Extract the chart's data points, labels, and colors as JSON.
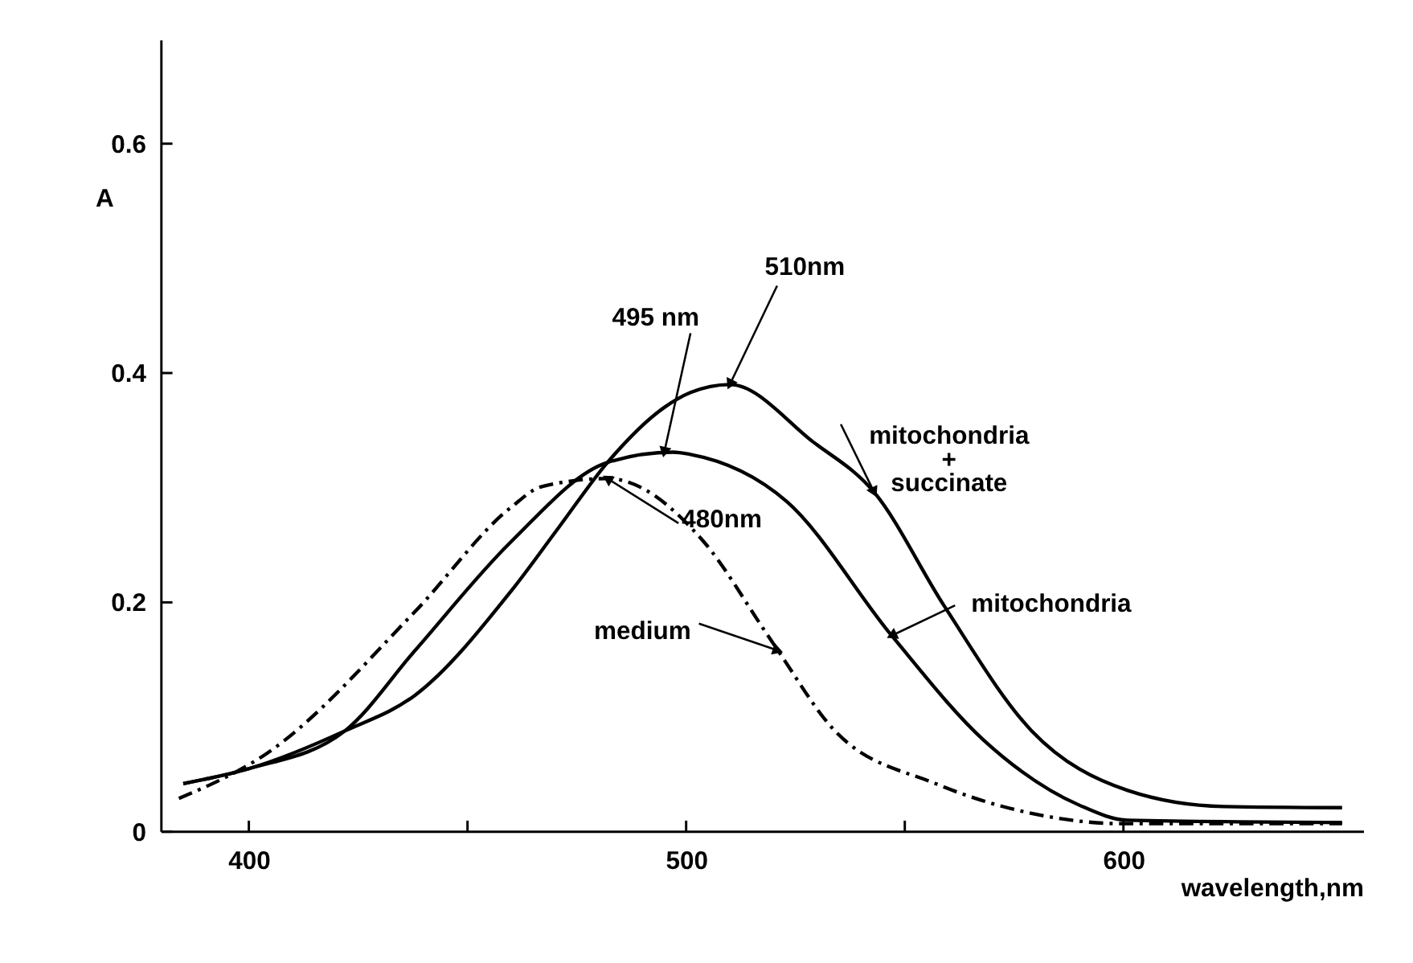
{
  "chart_data": {
    "type": "line",
    "xlabel": "wavelength,nm",
    "ylabel": "A",
    "xlim": [
      380,
      655
    ],
    "ylim": [
      0,
      0.69
    ],
    "xticks": [
      400,
      {
        "value": 450,
        "label": null
      },
      500,
      {
        "value": 550,
        "label": null
      },
      600
    ],
    "yticks": [
      0,
      0.2,
      0.4,
      0.6
    ],
    "grid": false,
    "marker": "none",
    "series": [
      {
        "name": "mitochondria\n+\nsuccinate",
        "color": "#000000",
        "line_style": "solid",
        "x": [
          385,
          400,
          422,
          438,
          460,
          471,
          482,
          495,
          501,
          510,
          529,
          543,
          559,
          579,
          601,
          623,
          650
        ],
        "values": [
          0.042,
          0.055,
          0.088,
          0.119,
          0.21,
          0.266,
          0.322,
          0.37,
          0.383,
          0.39,
          0.34,
          0.296,
          0.197,
          0.088,
          0.036,
          0.022,
          0.021
        ]
      },
      {
        "name": "mitochondria",
        "color": "#000000",
        "line_style": "solid",
        "x": [
          385,
          400,
          422,
          438,
          460,
          482,
          497,
          501,
          523,
          547,
          568,
          590,
          601,
          650
        ],
        "values": [
          0.042,
          0.055,
          0.088,
          0.158,
          0.253,
          0.322,
          0.331,
          0.329,
          0.288,
          0.171,
          0.08,
          0.023,
          0.01,
          0.008
        ]
      },
      {
        "name": "medium",
        "color": "#000000",
        "line_style": "dashed",
        "x": [
          384,
          404,
          438,
          460,
          467,
          482,
          504,
          518,
          521,
          534,
          557,
          579,
          600,
          650
        ],
        "values": [
          0.029,
          0.068,
          0.192,
          0.283,
          0.301,
          0.308,
          0.253,
          0.175,
          0.158,
          0.088,
          0.042,
          0.016,
          0.007,
          0.007
        ]
      }
    ],
    "annotations": [
      {
        "text": "510nm",
        "x": 510,
        "y": 0.39
      },
      {
        "text": "495 nm",
        "x": 495,
        "y": 0.331
      },
      {
        "text": "480nm",
        "x": 482,
        "y": 0.308
      }
    ]
  }
}
